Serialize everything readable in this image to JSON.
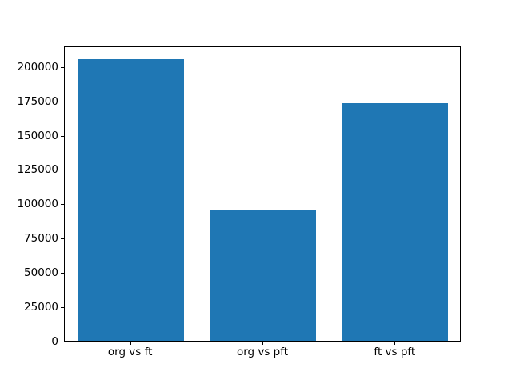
{
  "chart_data": {
    "type": "bar",
    "categories": [
      "org vs ft",
      "org vs pft",
      "ft vs pft"
    ],
    "values": [
      205000,
      95000,
      173000
    ],
    "title": "",
    "xlabel": "",
    "ylabel": "",
    "ylim": [
      0,
      215000
    ],
    "yticks": [
      0,
      25000,
      50000,
      75000,
      100000,
      125000,
      150000,
      175000,
      200000
    ],
    "ytick_labels": [
      "0",
      "25000",
      "50000",
      "75000",
      "100000",
      "125000",
      "150000",
      "175000",
      "200000"
    ],
    "bar_color": "#1f77b4",
    "axis_color": "#000000",
    "background_color": "#ffffff",
    "grid": false,
    "legend": null,
    "bar_width_fraction": 0.8
  }
}
